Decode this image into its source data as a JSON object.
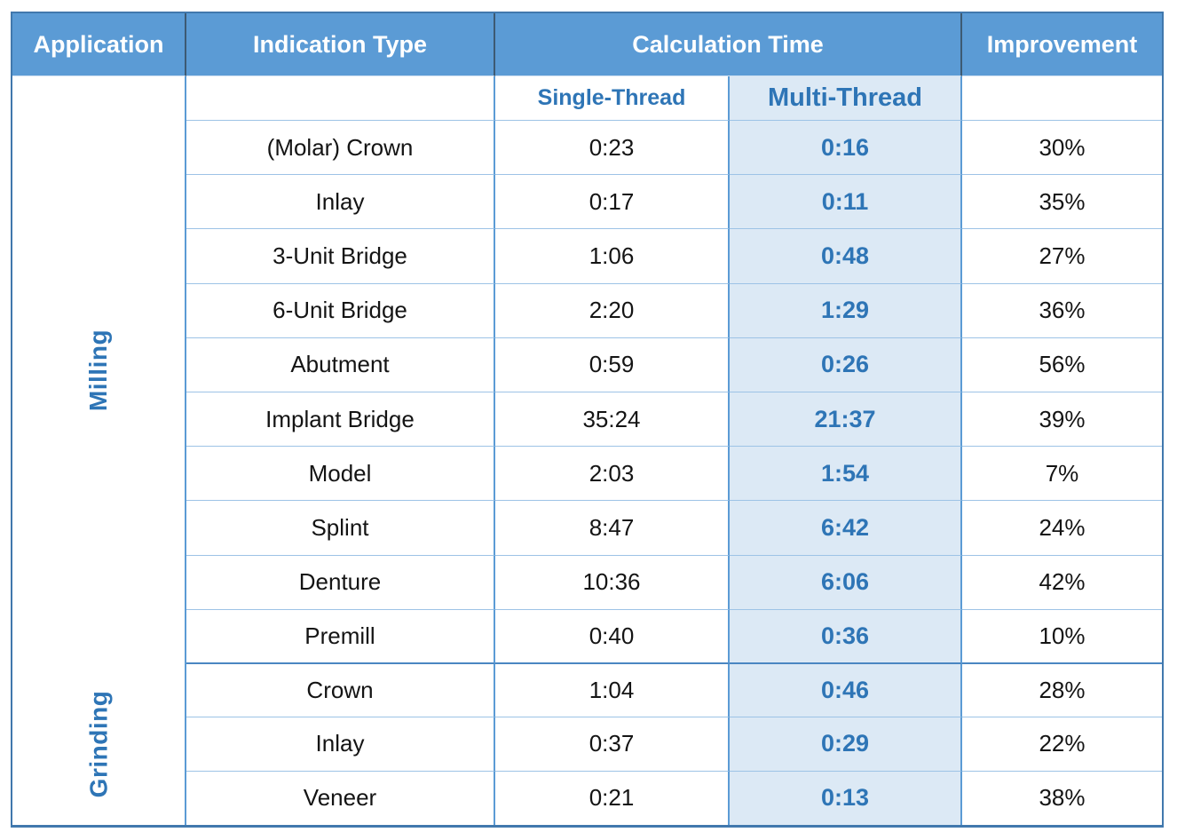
{
  "colors": {
    "header_bg": "#5b9bd5",
    "header_text": "#ffffff",
    "header_divider": "#3d5a73",
    "accent_blue": "#2e75b6",
    "multi_column_bg": "#dce9f5",
    "row_border": "#9dc3e6",
    "column_border": "#5b9bd5",
    "outer_border": "#4178ad",
    "body_text": "#141414"
  },
  "table": {
    "headers": {
      "application": "Application",
      "indication_type": "Indication Type",
      "calculation_time": "Calculation Time",
      "improvement": "Improvement"
    },
    "sub_headers": {
      "single_thread": "Single-Thread",
      "multi_thread": "Multi-Thread"
    },
    "sections": [
      {
        "label": "Milling",
        "row_count": 10
      },
      {
        "label": "Grinding",
        "row_count": 3
      }
    ],
    "rows": [
      {
        "section": "Milling",
        "indication": "(Molar) Crown",
        "single_thread": "0:23",
        "multi_thread": "0:16",
        "improvement": "30%"
      },
      {
        "section": "Milling",
        "indication": "Inlay",
        "single_thread": "0:17",
        "multi_thread": "0:11",
        "improvement": "35%"
      },
      {
        "section": "Milling",
        "indication": "3-Unit Bridge",
        "single_thread": "1:06",
        "multi_thread": "0:48",
        "improvement": "27%"
      },
      {
        "section": "Milling",
        "indication": "6-Unit Bridge",
        "single_thread": "2:20",
        "multi_thread": "1:29",
        "improvement": "36%"
      },
      {
        "section": "Milling",
        "indication": "Abutment",
        "single_thread": "0:59",
        "multi_thread": "0:26",
        "improvement": "56%"
      },
      {
        "section": "Milling",
        "indication": "Implant Bridge",
        "single_thread": "35:24",
        "multi_thread": "21:37",
        "improvement": "39%"
      },
      {
        "section": "Milling",
        "indication": "Model",
        "single_thread": "2:03",
        "multi_thread": "1:54",
        "improvement": "7%"
      },
      {
        "section": "Milling",
        "indication": "Splint",
        "single_thread": "8:47",
        "multi_thread": "6:42",
        "improvement": "24%"
      },
      {
        "section": "Milling",
        "indication": "Denture",
        "single_thread": "10:36",
        "multi_thread": "6:06",
        "improvement": "42%"
      },
      {
        "section": "Milling",
        "indication": "Premill",
        "single_thread": "0:40",
        "multi_thread": "0:36",
        "improvement": "10%"
      },
      {
        "section": "Grinding",
        "indication": "Crown",
        "single_thread": "1:04",
        "multi_thread": "0:46",
        "improvement": "28%"
      },
      {
        "section": "Grinding",
        "indication": "Inlay",
        "single_thread": "0:37",
        "multi_thread": "0:29",
        "improvement": "22%"
      },
      {
        "section": "Grinding",
        "indication": "Veneer",
        "single_thread": "0:21",
        "multi_thread": "0:13",
        "improvement": "38%"
      }
    ]
  },
  "chart_data": {
    "type": "table",
    "title": "Calculation Time",
    "columns": [
      "Application",
      "Indication Type",
      "Single-Thread",
      "Multi-Thread",
      "Improvement"
    ],
    "rows": [
      [
        "Milling",
        "(Molar) Crown",
        "0:23",
        "0:16",
        "30%"
      ],
      [
        "Milling",
        "Inlay",
        "0:17",
        "0:11",
        "35%"
      ],
      [
        "Milling",
        "3-Unit Bridge",
        "1:06",
        "0:48",
        "27%"
      ],
      [
        "Milling",
        "6-Unit Bridge",
        "2:20",
        "1:29",
        "36%"
      ],
      [
        "Milling",
        "Abutment",
        "0:59",
        "0:26",
        "56%"
      ],
      [
        "Milling",
        "Implant Bridge",
        "35:24",
        "21:37",
        "39%"
      ],
      [
        "Milling",
        "Model",
        "2:03",
        "1:54",
        "7%"
      ],
      [
        "Milling",
        "Splint",
        "8:47",
        "6:42",
        "24%"
      ],
      [
        "Milling",
        "Denture",
        "10:36",
        "6:06",
        "42%"
      ],
      [
        "Milling",
        "Premill",
        "0:40",
        "0:36",
        "10%"
      ],
      [
        "Grinding",
        "Crown",
        "1:04",
        "0:46",
        "28%"
      ],
      [
        "Grinding",
        "Inlay",
        "0:37",
        "0:29",
        "22%"
      ],
      [
        "Grinding",
        "Veneer",
        "0:21",
        "0:13",
        "38%"
      ]
    ]
  }
}
